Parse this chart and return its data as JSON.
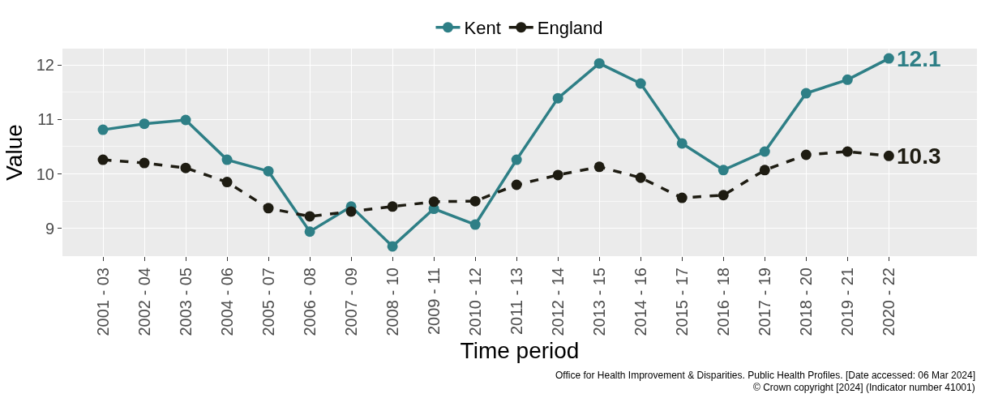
{
  "chart_data": {
    "type": "line",
    "xlabel": "Time period",
    "ylabel": "Value",
    "categories": [
      "2001 - 03",
      "2002 - 04",
      "2003 - 05",
      "2004 - 06",
      "2005 - 07",
      "2006 - 08",
      "2007 - 09",
      "2008 - 10",
      "2009 - 11",
      "2010 - 12",
      "2011 - 13",
      "2012 - 14",
      "2013 - 15",
      "2014 - 16",
      "2015 - 17",
      "2016 - 18",
      "2017 - 19",
      "2018 - 20",
      "2019 - 21",
      "2020 - 22"
    ],
    "series": [
      {
        "name": "Kent",
        "color": "#2e7f86",
        "line_style": "solid",
        "values": [
          10.81,
          10.92,
          10.99,
          10.26,
          10.05,
          8.94,
          9.4,
          8.67,
          9.36,
          9.07,
          10.26,
          11.39,
          12.03,
          11.66,
          10.56,
          10.07,
          10.41,
          11.48,
          11.73,
          12.12
        ],
        "value_labels": [
          null,
          null,
          null,
          null,
          null,
          null,
          null,
          null,
          null,
          null,
          null,
          null,
          null,
          null,
          null,
          null,
          null,
          null,
          null,
          "12.1"
        ]
      },
      {
        "name": "England",
        "color": "#1e1c12",
        "line_style": "dashed",
        "values": [
          10.26,
          10.2,
          10.11,
          9.85,
          9.37,
          9.22,
          9.31,
          9.4,
          9.49,
          9.5,
          9.8,
          9.98,
          10.13,
          9.93,
          9.56,
          9.61,
          10.07,
          10.35,
          10.41,
          10.33
        ],
        "value_labels": [
          null,
          null,
          null,
          null,
          null,
          null,
          null,
          null,
          null,
          null,
          null,
          null,
          null,
          null,
          null,
          null,
          null,
          null,
          null,
          "10.3"
        ]
      }
    ],
    "ylim": [
      8.49,
      12.3
    ],
    "yticks": [
      9,
      10,
      11,
      12
    ],
    "grid": true,
    "legend": "top",
    "marker": "circle",
    "annotations": [
      "Office for Health Improvement & Disparities. Public Health Profiles. [Date accessed: 06 Mar 2024]",
      "© Crown copyright [2024] (Indicator number 41001)"
    ]
  }
}
